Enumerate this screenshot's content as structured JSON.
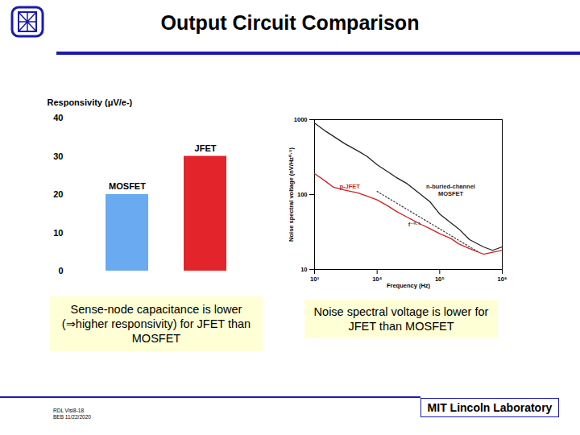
{
  "slide": {
    "title": "Output Circuit Comparison",
    "captions": [
      "Sense-node capacitance is lower (⇒higher responsivity) for JFET than MOSFET",
      "Noise spectral voltage is lower for JFET than MOSFET"
    ],
    "footer": "MIT Lincoln Laboratory",
    "notes": [
      "RDL Vlsi8-18",
      "BEB 11/22/2020"
    ]
  },
  "chart_data": [
    {
      "type": "bar",
      "y_label": "Responsivity (μV/e-)",
      "categories": [
        "MOSFET",
        "JFET"
      ],
      "values": [
        20,
        30
      ],
      "colors": [
        "#6aaaf0",
        "#e3242b"
      ],
      "ylim": [
        0,
        40
      ],
      "yticks": [
        0,
        10,
        20,
        30,
        40
      ],
      "tick_labels": "y"
    },
    {
      "type": "line",
      "log": true,
      "x_label": "Frequency (Hz)",
      "y_label": "Noise spectral voltage (nV/Hz⁰·⁵)",
      "xlim": [
        1000,
        1000000
      ],
      "xticks": [
        {
          "value": 1000,
          "label": "10³"
        },
        {
          "value": 10000,
          "label": "10⁴"
        },
        {
          "value": 100000,
          "label": "10⁵"
        },
        {
          "value": 1000000,
          "label": "10⁶"
        }
      ],
      "ylim": [
        10,
        1000
      ],
      "yticks": [
        10,
        100,
        1000
      ],
      "series": [
        {
          "name": "n-buried-channel\nMOSFET",
          "color": "#222222",
          "line_style": "solid",
          "x": [
            1000,
            1500,
            2000,
            3000,
            5000,
            7000,
            10000,
            15000,
            20000,
            30000,
            50000,
            70000,
            100000,
            150000,
            200000,
            300000,
            500000,
            700000,
            1000000
          ],
          "values": [
            900,
            700,
            600,
            480,
            380,
            320,
            250,
            200,
            170,
            140,
            100,
            80,
            55,
            42,
            35,
            25,
            20,
            18,
            20
          ]
        },
        {
          "name": "p-JFET",
          "color": "#d42020",
          "line_style": "solid",
          "x": [
            1000,
            1500,
            2000,
            3000,
            5000,
            7000,
            10000,
            15000,
            20000,
            30000,
            50000,
            70000,
            100000,
            150000,
            200000,
            300000,
            500000,
            700000,
            1000000
          ],
          "values": [
            190,
            150,
            125,
            115,
            105,
            95,
            85,
            70,
            60,
            50,
            40,
            35,
            30,
            26,
            22,
            19,
            16,
            17,
            18
          ]
        },
        {
          "name": "f⁻⁰·⁵",
          "color": "#444444",
          "line_style": "dotted",
          "x": [
            10000,
            400000
          ],
          "values": [
            110,
            17.4
          ]
        }
      ]
    }
  ]
}
